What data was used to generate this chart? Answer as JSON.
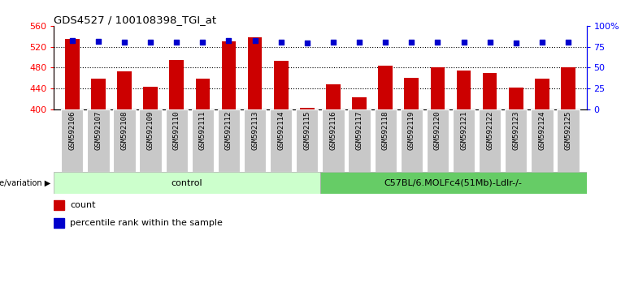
{
  "title": "GDS4527 / 100108398_TGI_at",
  "samples": [
    "GSM592106",
    "GSM592107",
    "GSM592108",
    "GSM592109",
    "GSM592110",
    "GSM592111",
    "GSM592112",
    "GSM592113",
    "GSM592114",
    "GSM592115",
    "GSM592116",
    "GSM592117",
    "GSM592118",
    "GSM592119",
    "GSM592120",
    "GSM592121",
    "GSM592122",
    "GSM592123",
    "GSM592124",
    "GSM592125"
  ],
  "counts": [
    535,
    458,
    472,
    443,
    495,
    458,
    530,
    538,
    492,
    402,
    447,
    422,
    483,
    460,
    480,
    474,
    470,
    441,
    458,
    480
  ],
  "percentile_ranks": [
    82,
    81,
    80,
    80,
    80,
    80,
    82,
    82,
    80,
    79,
    80,
    80,
    80,
    80,
    80,
    80,
    80,
    79,
    80,
    80
  ],
  "ylim_left": [
    400,
    560
  ],
  "ylim_right": [
    0,
    100
  ],
  "yticks_left": [
    400,
    440,
    480,
    520,
    560
  ],
  "yticks_right": [
    0,
    25,
    50,
    75,
    100
  ],
  "bar_color": "#cc0000",
  "dot_color": "#0000cc",
  "group1_label": "control",
  "group2_label": "C57BL/6.MOLFc4(51Mb)-Ldlr-/-",
  "group1_n": 10,
  "group2_n": 10,
  "group1_color": "#ccffcc",
  "group2_color": "#66cc66",
  "genotype_label": "genotype/variation",
  "legend_count_label": "count",
  "legend_pct_label": "percentile rank within the sample",
  "bg_color": "#ffffff",
  "tick_bg_color": "#c8c8c8",
  "grid_levels": [
    440,
    480,
    520
  ]
}
